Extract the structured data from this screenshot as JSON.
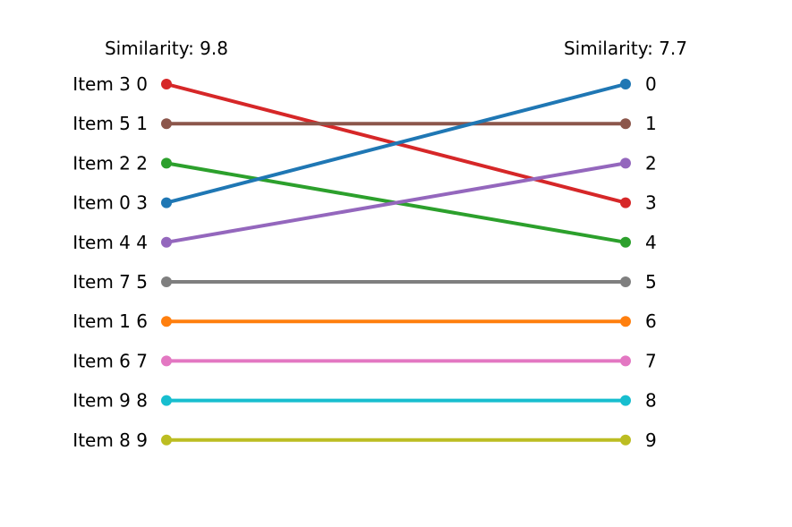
{
  "chart_data": {
    "type": "slope",
    "left_title": "Similarity: 9.8",
    "right_title": "Similarity: 7.7",
    "left_labels": [
      "Item 3 0",
      "Item 5 1",
      "Item 2 2",
      "Item 0 3",
      "Item 4 4",
      "Item 7 5",
      "Item 1 6",
      "Item 6 7",
      "Item 9 8",
      "Item 8 9"
    ],
    "right_labels": [
      "0",
      "1",
      "2",
      "3",
      "4",
      "5",
      "6",
      "7",
      "8",
      "9"
    ],
    "lines": [
      {
        "item": "Item 3",
        "left_rank": 0,
        "right_rank": 3,
        "color": "#d62728"
      },
      {
        "item": "Item 5",
        "left_rank": 1,
        "right_rank": 1,
        "color": "#8c564b"
      },
      {
        "item": "Item 2",
        "left_rank": 2,
        "right_rank": 4,
        "color": "#2ca02c"
      },
      {
        "item": "Item 0",
        "left_rank": 3,
        "right_rank": 0,
        "color": "#1f77b4"
      },
      {
        "item": "Item 4",
        "left_rank": 4,
        "right_rank": 2,
        "color": "#9467bd"
      },
      {
        "item": "Item 7",
        "left_rank": 5,
        "right_rank": 5,
        "color": "#7f7f7f"
      },
      {
        "item": "Item 1",
        "left_rank": 6,
        "right_rank": 6,
        "color": "#ff7f0e"
      },
      {
        "item": "Item 6",
        "left_rank": 7,
        "right_rank": 7,
        "color": "#e377c2"
      },
      {
        "item": "Item 9",
        "left_rank": 8,
        "right_rank": 8,
        "color": "#17becf"
      },
      {
        "item": "Item 8",
        "left_rank": 9,
        "right_rank": 9,
        "color": "#bcbd22"
      }
    ]
  }
}
